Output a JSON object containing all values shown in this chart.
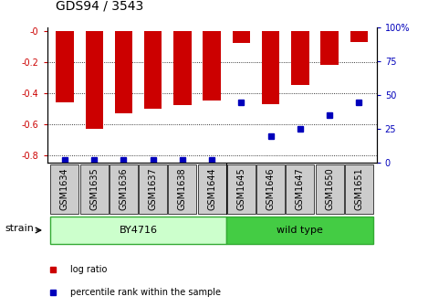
{
  "title": "GDS94 / 3543",
  "samples": [
    "GSM1634",
    "GSM1635",
    "GSM1636",
    "GSM1637",
    "GSM1638",
    "GSM1644",
    "GSM1645",
    "GSM1646",
    "GSM1647",
    "GSM1650",
    "GSM1651"
  ],
  "log_ratios": [
    -0.46,
    -0.63,
    -0.53,
    -0.5,
    -0.48,
    -0.45,
    -0.08,
    -0.47,
    -0.35,
    -0.22,
    -0.07
  ],
  "percentile_ranks": [
    2,
    2,
    2,
    2,
    2,
    2,
    45,
    20,
    25,
    35,
    45
  ],
  "ylim_left": [
    -0.85,
    0.02
  ],
  "ylim_right": [
    0,
    100
  ],
  "yticks_left": [
    0.0,
    -0.2,
    -0.4,
    -0.6,
    -0.8
  ],
  "yticks_right": [
    0,
    25,
    50,
    75,
    100
  ],
  "bar_color": "#cc0000",
  "percentile_color": "#0000bb",
  "bg_color": "#ffffff",
  "grid_color": "#000000",
  "tick_label_color_left": "#cc0000",
  "tick_label_color_right": "#0000bb",
  "title_fontsize": 10,
  "tick_fontsize": 7,
  "xlabel_fontsize": 7,
  "label_fontsize": 8,
  "strain_label": "strain",
  "legend_log_ratio": "log ratio",
  "legend_percentile": "percentile rank within the sample",
  "by4716_color": "#ccffcc",
  "wildtype_color": "#44cc44",
  "group_edge_color": "#33aa33",
  "sample_box_color": "#cccccc"
}
